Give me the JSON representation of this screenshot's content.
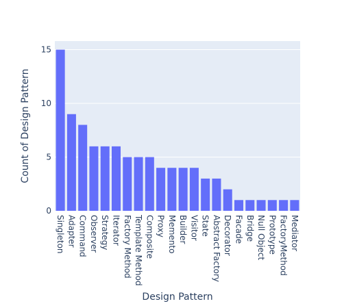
{
  "chart_data": {
    "type": "bar",
    "title": "",
    "xlabel": "Design Pattern",
    "ylabel": "Count of Design Pattern",
    "categories": [
      "Singleton",
      "Adapter",
      "Command",
      "Observer",
      "Strategy",
      "Iterator",
      "Factory Method",
      "Template Method",
      "Composite",
      "Proxy",
      "Memento",
      "Builder",
      "Visitor",
      "State",
      "Abstract Factory",
      "Decorator",
      "Facade",
      "Bridge",
      "Null Object",
      "Prototype",
      "FactoryMethod",
      "Mediator"
    ],
    "values": [
      15,
      9,
      8,
      6,
      6,
      6,
      5,
      5,
      5,
      4,
      4,
      4,
      4,
      3,
      3,
      2,
      1,
      1,
      1,
      1,
      1,
      1
    ],
    "ylim": [
      0,
      15.8
    ],
    "yticks": [
      0,
      5,
      10,
      15
    ],
    "grid": true,
    "legend": "none",
    "colors": {
      "bar": "#636efa",
      "plot_bg": "#e5ecf6",
      "grid": "#ffffff",
      "text": "#2a3f5f"
    }
  }
}
